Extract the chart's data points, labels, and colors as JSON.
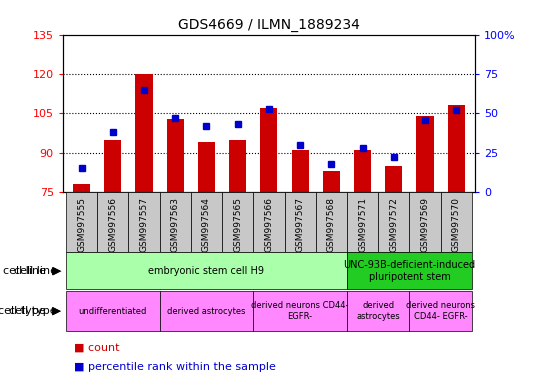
{
  "title": "GDS4669 / ILMN_1889234",
  "samples": [
    "GSM997555",
    "GSM997556",
    "GSM997557",
    "GSM997563",
    "GSM997564",
    "GSM997565",
    "GSM997566",
    "GSM997567",
    "GSM997568",
    "GSM997571",
    "GSM997572",
    "GSM997569",
    "GSM997570"
  ],
  "counts": [
    78,
    95,
    120,
    103,
    94,
    95,
    107,
    91,
    83,
    91,
    85,
    104,
    108
  ],
  "percentiles": [
    15,
    38,
    65,
    47,
    42,
    43,
    53,
    30,
    18,
    28,
    22,
    46,
    52
  ],
  "ylim_left": [
    75,
    135
  ],
  "ylim_right": [
    0,
    100
  ],
  "yticks_left": [
    75,
    90,
    105,
    120,
    135
  ],
  "yticks_right": [
    0,
    25,
    50,
    75,
    100
  ],
  "bar_color": "#cc0000",
  "dot_color": "#0000cc",
  "bar_bottom": 75,
  "sample_bg_color": "#c8c8c8",
  "cell_line_groups": [
    {
      "label": "embryonic stem cell H9",
      "start": 0,
      "end": 9,
      "color": "#aaffaa"
    },
    {
      "label": "UNC-93B-deficient-induced\npluripotent stem",
      "start": 9,
      "end": 13,
      "color": "#22cc22"
    }
  ],
  "cell_type_groups": [
    {
      "label": "undifferentiated",
      "start": 0,
      "end": 3,
      "color": "#ff88ff"
    },
    {
      "label": "derived astrocytes",
      "start": 3,
      "end": 6,
      "color": "#ff88ff"
    },
    {
      "label": "derived neurons CD44-\nEGFR-",
      "start": 6,
      "end": 9,
      "color": "#ff88ff"
    },
    {
      "label": "derived\nastrocytes",
      "start": 9,
      "end": 11,
      "color": "#ff88ff"
    },
    {
      "label": "derived neurons\nCD44- EGFR-",
      "start": 11,
      "end": 13,
      "color": "#ff88ff"
    }
  ],
  "row_label_cell_line": "cell line",
  "row_label_cell_type": "cell type",
  "legend_count_color": "#cc0000",
  "legend_dot_color": "#0000cc"
}
